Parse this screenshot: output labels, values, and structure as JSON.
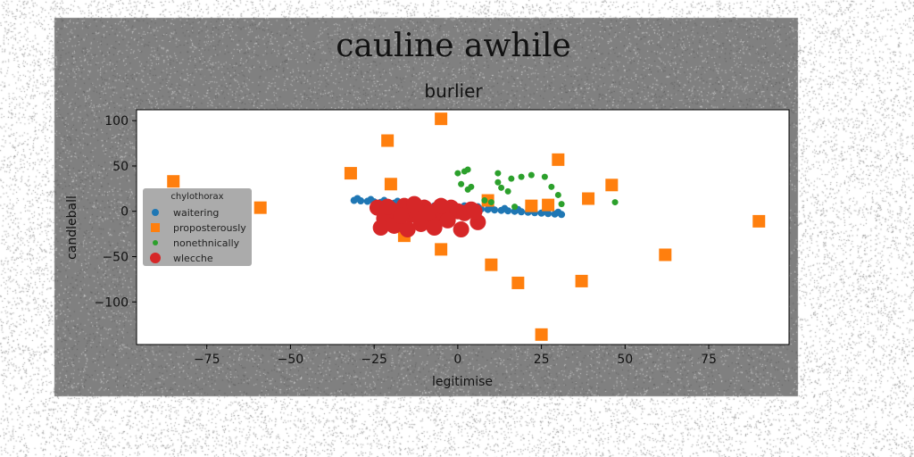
{
  "chart_data": {
    "type": "scatter",
    "suptitle": "cauline awhile",
    "title": "burlier",
    "xlabel": "legitimise",
    "ylabel": "candleball",
    "xlim": [
      -96,
      99
    ],
    "ylim": [
      -147,
      112
    ],
    "xticks": [
      -75,
      -50,
      -25,
      0,
      25,
      50,
      75
    ],
    "yticks": [
      -100,
      -50,
      0,
      50,
      100
    ],
    "xtick_labels": [
      "−75",
      "−50",
      "−25",
      "0",
      "25",
      "50",
      "75"
    ],
    "ytick_labels": [
      "−100",
      "−50",
      "0",
      "50",
      "100"
    ],
    "grid": false,
    "legend": {
      "title": "chylothorax",
      "placement": "center-left"
    },
    "colors": {
      "figure_bg": "#808080",
      "axes_bg": "#ffffff",
      "legend_bg": "#a6a6a6",
      "waitering": "#1f77b4",
      "proposterously": "#ff7f0e",
      "nonethnically": "#2ca02c",
      "wlecche": "#d62728"
    },
    "series": [
      {
        "name": "waitering",
        "marker": "circle",
        "x": [
          -31,
          -29,
          -27,
          -25,
          -23,
          -21,
          -19,
          -17,
          -15,
          -13,
          -11,
          -9,
          -7,
          -5,
          -3,
          -1,
          1,
          3,
          5,
          7,
          9,
          11,
          13,
          15,
          17,
          19,
          21,
          23,
          25,
          27,
          29,
          31,
          -30,
          -26,
          -22,
          -18,
          -14,
          -10,
          -6,
          -2,
          2,
          6,
          10,
          14,
          18,
          22,
          26,
          30
        ],
        "y": [
          12,
          11.5,
          11,
          10.5,
          10,
          9.5,
          9,
          8.5,
          8,
          7.5,
          7,
          6.5,
          6,
          5.5,
          5,
          4.5,
          4,
          3.5,
          3,
          2.5,
          2,
          1.5,
          1,
          0.5,
          0,
          -0.5,
          -1,
          -1.5,
          -2,
          -2.5,
          -3,
          -3.5,
          14,
          13,
          12,
          11,
          10,
          9,
          8,
          7,
          6,
          5,
          4,
          3,
          2,
          1,
          0,
          -1
        ]
      },
      {
        "name": "proposterously",
        "marker": "square",
        "x": [
          -85,
          -59,
          -32,
          -21,
          -20,
          -16,
          -5,
          -5,
          9,
          10,
          18,
          22,
          25,
          27,
          30,
          37,
          39,
          46,
          62,
          90
        ],
        "y": [
          33,
          4,
          42,
          78,
          30,
          -27,
          102,
          -42,
          12,
          -59,
          -79,
          6,
          -136,
          7,
          57,
          -77,
          14,
          29,
          -48,
          -11
        ]
      },
      {
        "name": "nonethnically",
        "marker": "circle",
        "x": [
          0,
          1,
          2,
          3,
          3,
          4,
          8,
          10,
          12,
          13,
          16,
          17,
          19,
          22,
          26,
          28,
          30,
          31,
          47,
          12,
          15
        ],
        "y": [
          42,
          30,
          44,
          46,
          24,
          27,
          12,
          10,
          42,
          26,
          36,
          5,
          38,
          40,
          38,
          27,
          18,
          8,
          10,
          32,
          22
        ]
      },
      {
        "name": "wlecche",
        "marker": "circle",
        "x": [
          -24,
          -22,
          -20,
          -18,
          -16,
          -14,
          -12,
          -10,
          -8,
          -6,
          -4,
          -2,
          0,
          2,
          4,
          6,
          -23,
          -19,
          -15,
          -11,
          -7,
          -3,
          1,
          5,
          -21,
          -17,
          -13,
          -9,
          -5
        ],
        "y": [
          4,
          -8,
          2,
          -12,
          6,
          -4,
          0,
          4,
          -6,
          2,
          -8,
          4,
          0,
          -2,
          2,
          -12,
          -18,
          -16,
          -20,
          -14,
          -18,
          -10,
          -20,
          0,
          5,
          -5,
          8,
          -2,
          6
        ]
      }
    ]
  }
}
